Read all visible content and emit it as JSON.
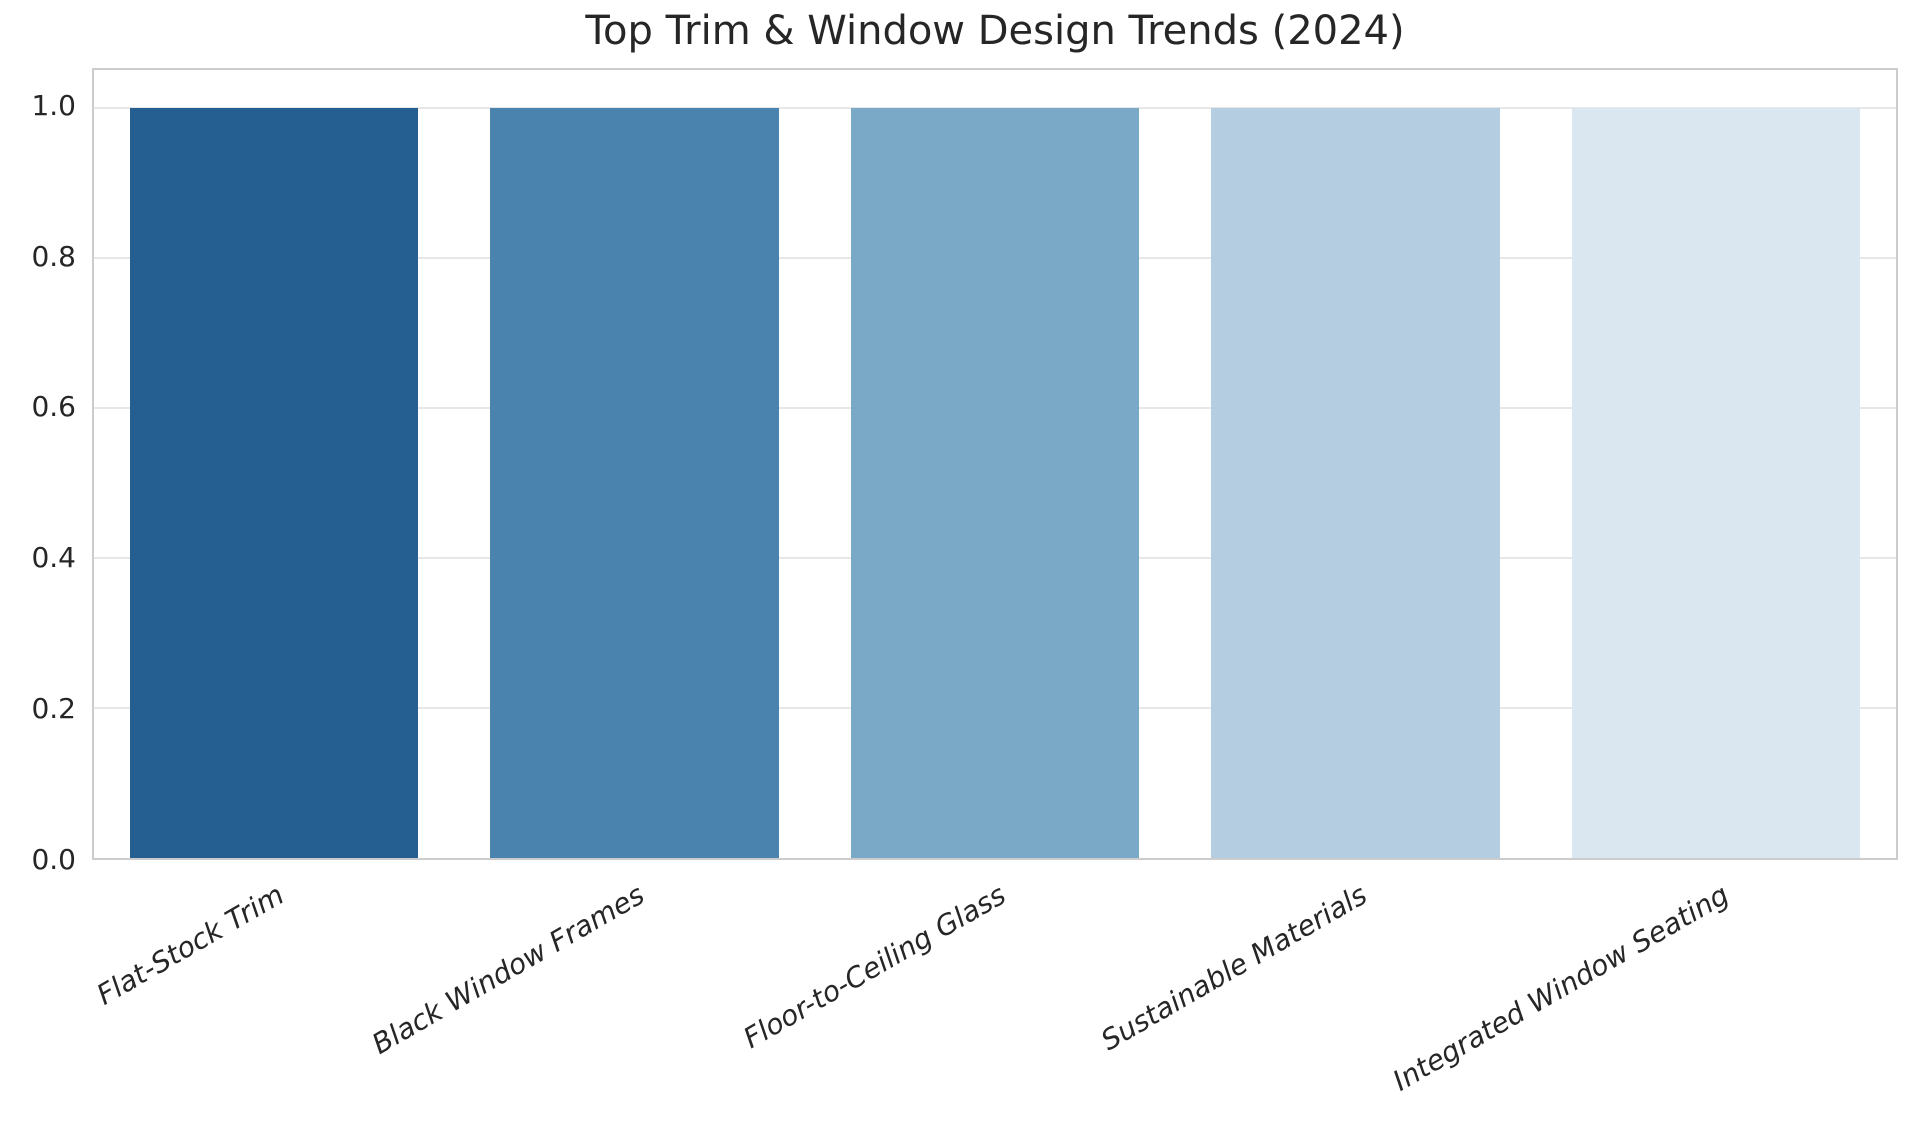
{
  "chart_data": {
    "type": "bar",
    "title": "Top Trim & Window Design Trends (2024)",
    "categories": [
      "Flat-Stock Trim",
      "Black Window Frames",
      "Floor-to-Ceiling Glass",
      "Sustainable Materials",
      "Integrated Window Seating"
    ],
    "values": [
      1.0,
      1.0,
      1.0,
      1.0,
      1.0
    ],
    "bar_colors": [
      "#255e90",
      "#4a83ae",
      "#7aa9c7",
      "#b5cde0",
      "#dae6f0"
    ],
    "xlabel": "",
    "ylabel": "",
    "ylim": [
      0,
      1.05
    ],
    "yticks": [
      0.0,
      0.2,
      0.4,
      0.6,
      0.8,
      1.0
    ],
    "ytick_labels": [
      "0.0",
      "0.2",
      "0.4",
      "0.6",
      "0.8",
      "1.0"
    ],
    "bar_relative_width": 0.8,
    "x_tick_rotation_deg": 30,
    "x_tick_style": "italic",
    "grid": "horizontal",
    "legend": "none"
  },
  "colors": {
    "background": "#ffffff",
    "grid": "#e7e7e7",
    "spine": "#cccccc",
    "text": "#262626"
  }
}
